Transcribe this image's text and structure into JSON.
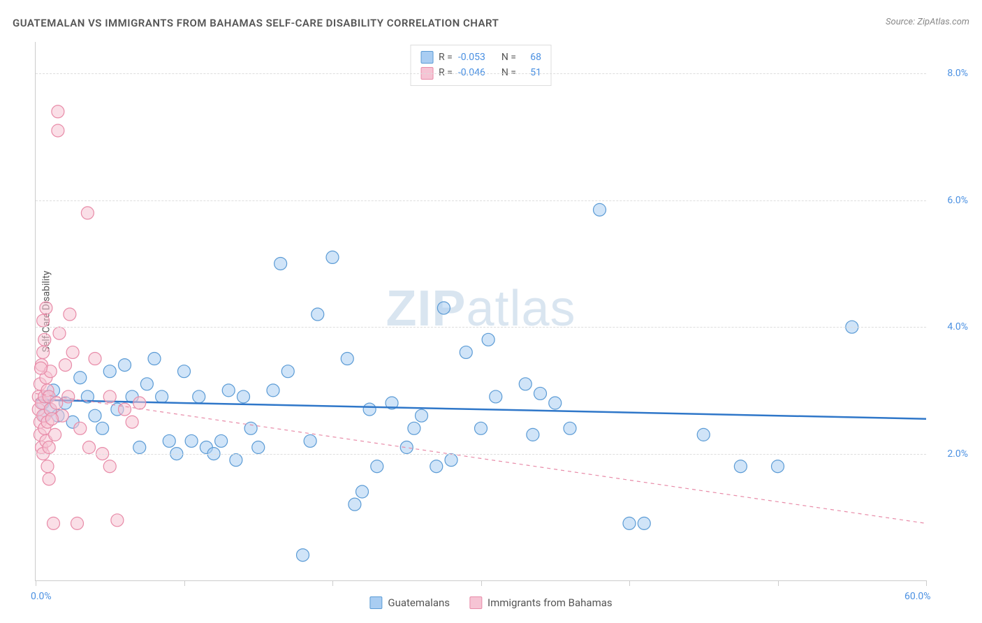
{
  "title": "GUATEMALAN VS IMMIGRANTS FROM BAHAMAS SELF-CARE DISABILITY CORRELATION CHART",
  "source": "Source: ZipAtlas.com",
  "y_axis_label": "Self-Care Disability",
  "watermark_bold": "ZIP",
  "watermark_light": "atlas",
  "chart": {
    "type": "scatter",
    "xlim": [
      0,
      60
    ],
    "ylim": [
      0,
      8.5
    ],
    "x_ticks": [
      0,
      10,
      20,
      30,
      40,
      50,
      60
    ],
    "x_tick_labels_shown": {
      "0": "0.0%",
      "60": "60.0%"
    },
    "y_ticks": [
      2,
      4,
      6,
      8
    ],
    "y_tick_labels": [
      "2.0%",
      "4.0%",
      "6.0%",
      "8.0%"
    ],
    "background_color": "#ffffff",
    "grid_color": "#dddddd",
    "axis_color": "#cccccc",
    "tick_label_color": "#4a90e2",
    "marker_radius": 9,
    "marker_opacity": 0.55,
    "marker_stroke_width": 1.2
  },
  "series": [
    {
      "name": "Guatemalans",
      "r_value": "-0.053",
      "n_value": "68",
      "fill": "#a9cdf2",
      "stroke": "#5b9bd5",
      "trend": {
        "y_at_x0": 2.85,
        "y_at_x60": 2.55,
        "color": "#2f77c9",
        "width": 2.5,
        "dash": "none"
      },
      "points": [
        [
          0.5,
          2.8
        ],
        [
          0.6,
          2.6
        ],
        [
          0.8,
          2.9
        ],
        [
          1.0,
          2.7
        ],
        [
          1.2,
          3.0
        ],
        [
          1.5,
          2.6
        ],
        [
          2.0,
          2.8
        ],
        [
          2.5,
          2.5
        ],
        [
          3.0,
          3.2
        ],
        [
          3.5,
          2.9
        ],
        [
          4.0,
          2.6
        ],
        [
          4.5,
          2.4
        ],
        [
          5.0,
          3.3
        ],
        [
          5.5,
          2.7
        ],
        [
          6.0,
          3.4
        ],
        [
          6.5,
          2.9
        ],
        [
          7.0,
          2.1
        ],
        [
          7.5,
          3.1
        ],
        [
          8.0,
          3.5
        ],
        [
          8.5,
          2.9
        ],
        [
          9.0,
          2.2
        ],
        [
          9.5,
          2.0
        ],
        [
          10.0,
          3.3
        ],
        [
          10.5,
          2.2
        ],
        [
          11.0,
          2.9
        ],
        [
          11.5,
          2.1
        ],
        [
          12.0,
          2.0
        ],
        [
          12.5,
          2.2
        ],
        [
          13.0,
          3.0
        ],
        [
          13.5,
          1.9
        ],
        [
          14.0,
          2.9
        ],
        [
          15.0,
          2.1
        ],
        [
          16.0,
          3.0
        ],
        [
          16.5,
          5.0
        ],
        [
          18.0,
          0.4
        ],
        [
          18.5,
          2.2
        ],
        [
          19.0,
          4.2
        ],
        [
          20.0,
          5.1
        ],
        [
          21.0,
          3.5
        ],
        [
          21.5,
          1.2
        ],
        [
          22.0,
          1.4
        ],
        [
          22.5,
          2.7
        ],
        [
          23.0,
          1.8
        ],
        [
          24.0,
          2.8
        ],
        [
          25.0,
          2.1
        ],
        [
          25.5,
          2.4
        ],
        [
          27.0,
          1.8
        ],
        [
          27.5,
          4.3
        ],
        [
          28.0,
          1.9
        ],
        [
          29.0,
          3.6
        ],
        [
          30.0,
          2.4
        ],
        [
          30.5,
          3.8
        ],
        [
          31.0,
          2.9
        ],
        [
          33.0,
          3.1
        ],
        [
          33.5,
          2.3
        ],
        [
          34.0,
          2.95
        ],
        [
          35.0,
          2.8
        ],
        [
          38.0,
          5.85
        ],
        [
          40.0,
          0.9
        ],
        [
          41.0,
          0.9
        ],
        [
          45.0,
          2.3
        ],
        [
          47.5,
          1.8
        ],
        [
          55.0,
          4.0
        ],
        [
          50.0,
          1.8
        ],
        [
          36.0,
          2.4
        ],
        [
          26.0,
          2.6
        ],
        [
          17.0,
          3.3
        ],
        [
          14.5,
          2.4
        ]
      ]
    },
    {
      "name": "Immigrants from Bahamas",
      "r_value": "-0.046",
      "n_value": "51",
      "fill": "#f6c4d4",
      "stroke": "#e88ba8",
      "trend": {
        "y_at_x0": 2.95,
        "y_at_x60": 0.9,
        "color": "#e88ba8",
        "width": 1.2,
        "dash": "5,5"
      },
      "points": [
        [
          0.2,
          2.7
        ],
        [
          0.2,
          2.9
        ],
        [
          0.3,
          2.5
        ],
        [
          0.3,
          3.1
        ],
        [
          0.3,
          2.3
        ],
        [
          0.4,
          2.8
        ],
        [
          0.4,
          3.4
        ],
        [
          0.4,
          2.1
        ],
        [
          0.5,
          2.6
        ],
        [
          0.5,
          3.6
        ],
        [
          0.5,
          2.0
        ],
        [
          0.5,
          4.1
        ],
        [
          0.6,
          2.4
        ],
        [
          0.6,
          3.8
        ],
        [
          0.6,
          2.9
        ],
        [
          0.7,
          4.3
        ],
        [
          0.7,
          2.2
        ],
        [
          0.7,
          3.2
        ],
        [
          0.8,
          2.5
        ],
        [
          0.8,
          1.8
        ],
        [
          0.8,
          3.0
        ],
        [
          0.9,
          2.9
        ],
        [
          0.9,
          2.1
        ],
        [
          0.9,
          1.6
        ],
        [
          1.0,
          2.7
        ],
        [
          1.0,
          3.3
        ],
        [
          1.5,
          7.4
        ],
        [
          1.5,
          7.1
        ],
        [
          1.2,
          0.9
        ],
        [
          1.3,
          2.3
        ],
        [
          1.4,
          2.8
        ],
        [
          1.8,
          2.6
        ],
        [
          2.0,
          3.4
        ],
        [
          2.2,
          2.9
        ],
        [
          2.5,
          3.6
        ],
        [
          2.8,
          0.9
        ],
        [
          3.0,
          2.4
        ],
        [
          3.5,
          5.8
        ],
        [
          3.6,
          2.1
        ],
        [
          4.0,
          3.5
        ],
        [
          4.5,
          2.0
        ],
        [
          5.0,
          2.9
        ],
        [
          5.0,
          1.8
        ],
        [
          5.5,
          0.95
        ],
        [
          6.0,
          2.7
        ],
        [
          6.5,
          2.5
        ],
        [
          7.0,
          2.8
        ],
        [
          2.3,
          4.2
        ],
        [
          1.6,
          3.9
        ],
        [
          0.35,
          3.35
        ],
        [
          1.1,
          2.55
        ]
      ]
    }
  ],
  "legend_top": {
    "r_label": "R =",
    "n_label": "N ="
  },
  "legend_bottom": [
    {
      "label": "Guatemalans",
      "fill": "#a9cdf2",
      "stroke": "#5b9bd5"
    },
    {
      "label": "Immigrants from Bahamas",
      "fill": "#f6c4d4",
      "stroke": "#e88ba8"
    }
  ]
}
